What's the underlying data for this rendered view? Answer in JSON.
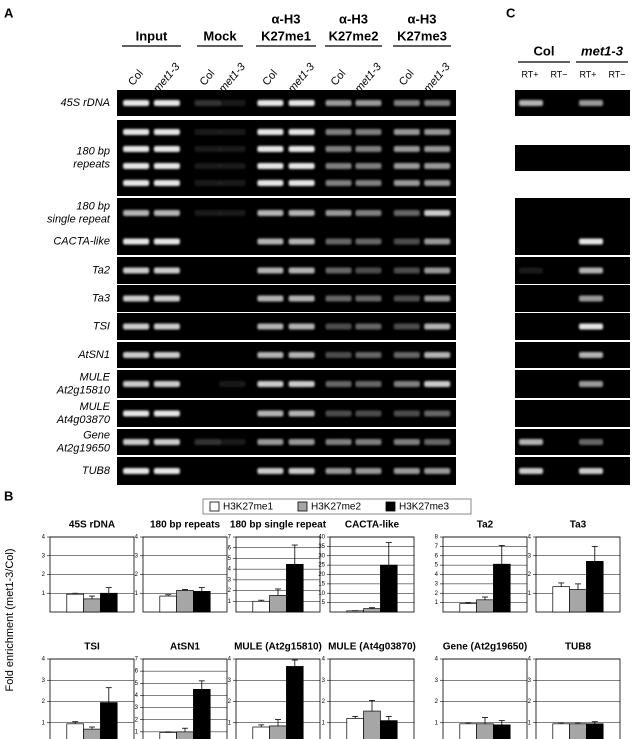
{
  "panel_a": {
    "label": "A",
    "groups": [
      {
        "title": [
          "Input"
        ],
        "lanes": [
          "Col",
          "met1-3"
        ]
      },
      {
        "title": [
          "Mock"
        ],
        "lanes": [
          "Col",
          "met1-3"
        ]
      },
      {
        "title": [
          "α-H3",
          "K27me1"
        ],
        "lanes": [
          "Col",
          "met1-3"
        ]
      },
      {
        "title": [
          "α-H3",
          "K27me2"
        ],
        "lanes": [
          "Col",
          "met1-3"
        ]
      },
      {
        "title": [
          "α-H3",
          "K27me3"
        ],
        "lanes": [
          "Col",
          "met1-3"
        ]
      }
    ],
    "rows": [
      [
        "45S rDNA"
      ],
      [
        "180 bp",
        "repeats"
      ],
      [
        "180 bp",
        "single repeat"
      ],
      [
        "CACTA-like"
      ],
      [
        "Ta2"
      ],
      [
        "Ta3"
      ],
      [
        "TSI"
      ],
      [
        "AtSN1"
      ],
      [
        "MULE",
        "At2g15810"
      ],
      [
        "MULE",
        "At4g03870"
      ],
      [
        "Gene",
        "At2g19650"
      ],
      [
        "TUB8"
      ]
    ]
  },
  "panel_c": {
    "label": "C",
    "groups": [
      {
        "title": "Col",
        "lanes": [
          "RT+",
          "RT−"
        ]
      },
      {
        "title": "met1-3",
        "lanes": [
          "RT+",
          "RT−"
        ]
      }
    ]
  },
  "panel_b": {
    "label": "B",
    "ylabel": "Fold enrichment (met1-3/Col)",
    "legend": [
      {
        "name": "H3K27me1",
        "color": "#ffffff"
      },
      {
        "name": "H3K27me2",
        "color": "#a6a6a6"
      },
      {
        "name": "H3K27me3",
        "color": "#000000"
      }
    ]
  },
  "chart_data": [
    {
      "type": "bar",
      "title": "45S rDNA",
      "values": [
        0.95,
        0.7,
        1.0
      ],
      "errors": [
        0.05,
        0.15,
        0.3
      ],
      "ylim": [
        0,
        4
      ],
      "yticks": [
        1,
        2,
        3,
        4
      ]
    },
    {
      "type": "bar",
      "title": "180 bp repeats",
      "values": [
        0.85,
        1.15,
        1.1
      ],
      "errors": [
        0.07,
        0.05,
        0.2
      ],
      "ylim": [
        0,
        4
      ],
      "yticks": [
        1,
        2,
        3,
        4
      ]
    },
    {
      "type": "bar",
      "title": "180 bp single repeat",
      "values": [
        1.0,
        1.55,
        4.45
      ],
      "errors": [
        0.1,
        0.6,
        1.8
      ],
      "ylim": [
        0,
        7
      ],
      "yticks": [
        1,
        2,
        3,
        4,
        5,
        6,
        7
      ]
    },
    {
      "type": "bar",
      "title": "CACTA-like",
      "values": [
        0.6,
        1.8,
        25
      ],
      "errors": [
        0.1,
        0.5,
        12
      ],
      "ylim": [
        0,
        40
      ],
      "yticks": [
        5,
        10,
        15,
        20,
        25,
        30,
        35,
        40
      ]
    },
    {
      "type": "bar",
      "title": "Ta2",
      "values": [
        0.9,
        1.3,
        5.1
      ],
      "errors": [
        0.1,
        0.3,
        2
      ],
      "ylim": [
        0,
        8
      ],
      "yticks": [
        1,
        2,
        3,
        4,
        5,
        6,
        7,
        8
      ]
    },
    {
      "type": "bar",
      "title": "Ta3",
      "values": [
        1.35,
        1.2,
        2.7
      ],
      "errors": [
        0.2,
        0.3,
        0.8
      ],
      "ylim": [
        0,
        4
      ],
      "yticks": [
        1,
        2,
        3,
        4
      ]
    },
    {
      "type": "bar",
      "title": "TSI",
      "values": [
        0.95,
        0.7,
        1.95
      ],
      "errors": [
        0.1,
        0.1,
        0.7
      ],
      "ylim": [
        0,
        4
      ],
      "yticks": [
        1,
        2,
        3,
        4
      ]
    },
    {
      "type": "bar",
      "title": "AtSN1",
      "values": [
        0.95,
        1.0,
        4.5
      ],
      "errors": [
        0.05,
        0.3,
        0.7
      ],
      "ylim": [
        0,
        7
      ],
      "yticks": [
        1,
        2,
        3,
        4,
        5,
        6,
        7
      ]
    },
    {
      "type": "bar",
      "title": "MULE (At2g15810)",
      "values": [
        0.8,
        0.85,
        3.65
      ],
      "errors": [
        0.1,
        0.3,
        0.3
      ],
      "ylim": [
        0,
        4
      ],
      "yticks": [
        1,
        2,
        3,
        4
      ]
    },
    {
      "type": "bar",
      "title": "MULE (At4g03870)",
      "values": [
        1.2,
        1.55,
        1.1
      ],
      "errors": [
        0.1,
        0.5,
        0.2
      ],
      "ylim": [
        0,
        4
      ],
      "yticks": [
        1,
        2,
        3,
        4
      ]
    },
    {
      "type": "bar",
      "title": "Gene (At2g19650)",
      "values": [
        0.95,
        0.95,
        0.9
      ],
      "errors": [
        0.05,
        0.3,
        0.2
      ],
      "ylim": [
        0,
        4
      ],
      "yticks": [
        1,
        2,
        3,
        4
      ]
    },
    {
      "type": "bar",
      "title": "TUB8",
      "values": [
        0.95,
        0.95,
        0.95
      ],
      "errors": [
        0.05,
        0.05,
        0.1
      ],
      "ylim": [
        0,
        4
      ],
      "yticks": [
        1,
        2,
        3,
        4
      ]
    }
  ]
}
